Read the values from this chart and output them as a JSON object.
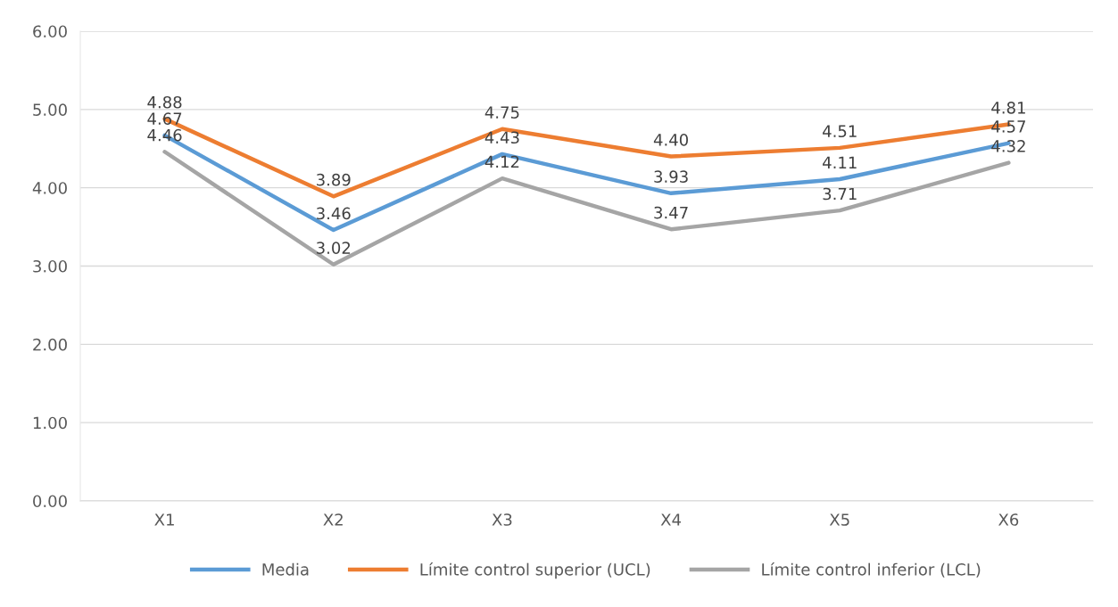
{
  "chart_data": {
    "type": "line",
    "categories": [
      "X1",
      "X2",
      "X3",
      "X4",
      "X5",
      "X6"
    ],
    "series": [
      {
        "name": "Media",
        "color": "#5b9bd5",
        "values": [
          4.67,
          3.46,
          4.43,
          3.93,
          4.11,
          4.57
        ],
        "value_labels": [
          "4.67",
          "3.46",
          "4.43",
          "3.93",
          "4.11",
          "4.57"
        ]
      },
      {
        "name": "Límite control superior (UCL)",
        "color": "#ed7d31",
        "values": [
          4.88,
          3.89,
          4.75,
          4.4,
          4.51,
          4.81
        ],
        "value_labels": [
          "4.88",
          "3.89",
          "4.75",
          "4.40",
          "4.51",
          "4.81"
        ]
      },
      {
        "name": "Límite control inferior (LCL)",
        "color": "#a5a5a5",
        "values": [
          4.46,
          3.02,
          4.12,
          3.47,
          3.71,
          4.32
        ],
        "value_labels": [
          "4.46",
          "3.02",
          "4.12",
          "3.47",
          "3.71",
          "4.32"
        ]
      }
    ],
    "ylim": [
      0,
      6
    ],
    "yticks": [
      {
        "value": 0,
        "label": "0.00"
      },
      {
        "value": 1,
        "label": "1.00"
      },
      {
        "value": 2,
        "label": "2.00"
      },
      {
        "value": 3,
        "label": "3.00"
      },
      {
        "value": 4,
        "label": "4.00"
      },
      {
        "value": 5,
        "label": "5.00"
      },
      {
        "value": 6,
        "label": "6.00"
      }
    ],
    "grid": "y",
    "legend": "bottom",
    "marker": "none",
    "line_style": "solid"
  }
}
